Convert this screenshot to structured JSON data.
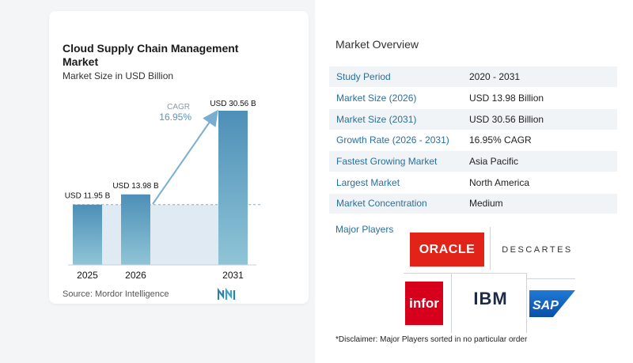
{
  "chart_data": {
    "type": "bar",
    "title": "Cloud Supply Chain Management Market",
    "subtitle": "Market Size in USD Billion",
    "categories": [
      "2025",
      "2026",
      "2031"
    ],
    "values": [
      11.95,
      13.98,
      30.56
    ],
    "value_labels": [
      "USD 11.95 B",
      "USD 13.98 B",
      "USD 30.56 B"
    ],
    "cagr_label": "CAGR",
    "cagr_value": "16.95%",
    "ylim": [
      0,
      30.56
    ],
    "grid": false,
    "legend": "none",
    "colors": {
      "bar_top": "#4d8fb8",
      "bar_bottom": "#8fc5d6",
      "area": "#dfeaf3",
      "arrow": "#7aaed0"
    }
  },
  "source_text": "Source:  Mordor Intelligence",
  "overview": {
    "title": "Market Overview",
    "rows": [
      {
        "key": "Study Period",
        "value": "2020 - 2031"
      },
      {
        "key": "Market Size (2026)",
        "value": "USD 13.98 Billion"
      },
      {
        "key": "Market Size (2031)",
        "value": "USD 30.56 Billion"
      },
      {
        "key": "Growth Rate (2026 - 2031)",
        "value": "16.95% CAGR"
      },
      {
        "key": "Fastest Growing Market",
        "value": "Asia Pacific"
      },
      {
        "key": "Largest Market",
        "value": "North America"
      },
      {
        "key": "Market Concentration",
        "value": "Medium"
      }
    ]
  },
  "players": {
    "label": "Major Players",
    "logos": [
      "ORACLE",
      "DESCARTES",
      "infor",
      "IBM",
      "SAP"
    ]
  },
  "disclaimer": "*Disclaimer: Major Players sorted in no particular order",
  "icons": [
    "mordor-intelligence-logo-icon"
  ]
}
